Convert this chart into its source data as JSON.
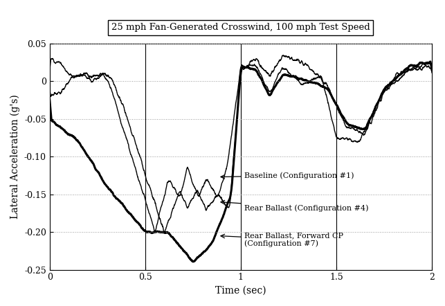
{
  "title": "25 mph Fan-Generated Crosswind, 100 mph Test Speed",
  "xlabel": "Time (sec)",
  "ylabel": "Lateral Acceleration (g's)",
  "xlim": [
    0,
    2
  ],
  "ylim": [
    -0.25,
    0.05
  ],
  "yticks": [
    -0.25,
    -0.2,
    -0.15,
    -0.1,
    -0.05,
    0.0,
    0.05
  ],
  "xticks": [
    0,
    0.5,
    1.0,
    1.5,
    2.0
  ],
  "line_configs": [
    {
      "label": "Baseline #1",
      "color": "#000000",
      "linewidth": 1.0
    },
    {
      "label": "Rear Ballast #4",
      "color": "#000000",
      "linewidth": 1.0
    },
    {
      "label": "Rear Ballast Forward CP #7",
      "color": "#000000",
      "linewidth": 2.2
    }
  ],
  "background_color": "#ffffff",
  "grid_color": "#999999",
  "vlines": [
    0.5,
    1.0,
    1.5
  ]
}
